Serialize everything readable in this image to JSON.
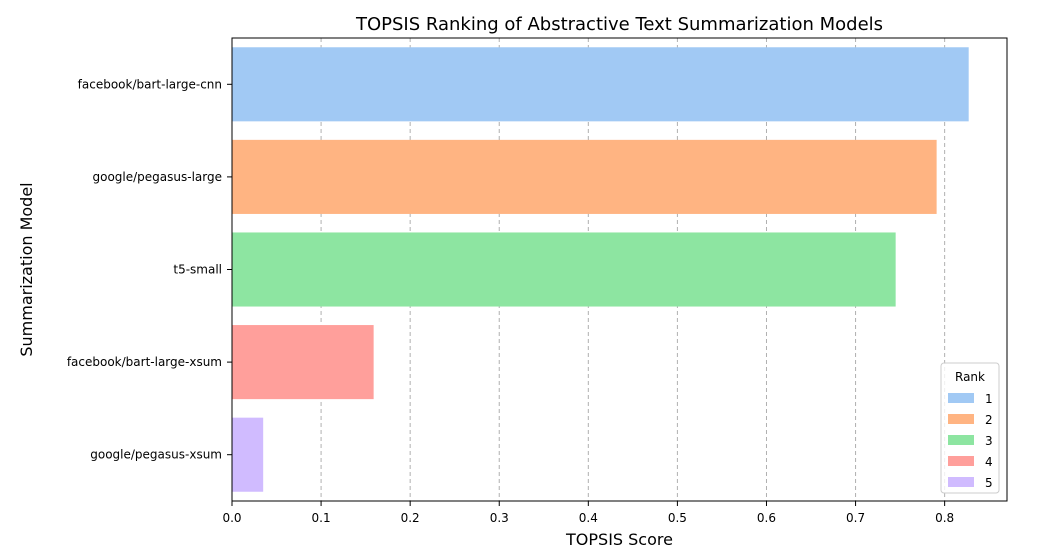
{
  "chart_data": {
    "type": "bar",
    "orientation": "horizontal",
    "title": "TOPSIS Ranking of Abstractive Text Summarization Models",
    "xlabel": "TOPSIS Score",
    "ylabel": "Summarization Model",
    "categories": [
      "facebook/bart-large-cnn",
      "google/pegasus-large",
      "t5-small",
      "facebook/bart-large-xsum",
      "google/pegasus-xsum"
    ],
    "values": [
      0.827,
      0.791,
      0.745,
      0.159,
      0.035
    ],
    "ranks": [
      "1",
      "2",
      "3",
      "4",
      "5"
    ],
    "colors": [
      "#a1c9f4",
      "#ffb482",
      "#8de5a1",
      "#ff9f9b",
      "#d0bbff"
    ],
    "xlim": [
      0,
      0.87
    ],
    "xticks": [
      "0.0",
      "0.1",
      "0.2",
      "0.3",
      "0.4",
      "0.5",
      "0.6",
      "0.7",
      "0.8"
    ],
    "grid": "x, dashed",
    "legend": {
      "title": "Rank",
      "placement": "lower-right",
      "entries": [
        "1",
        "2",
        "3",
        "4",
        "5"
      ]
    }
  }
}
